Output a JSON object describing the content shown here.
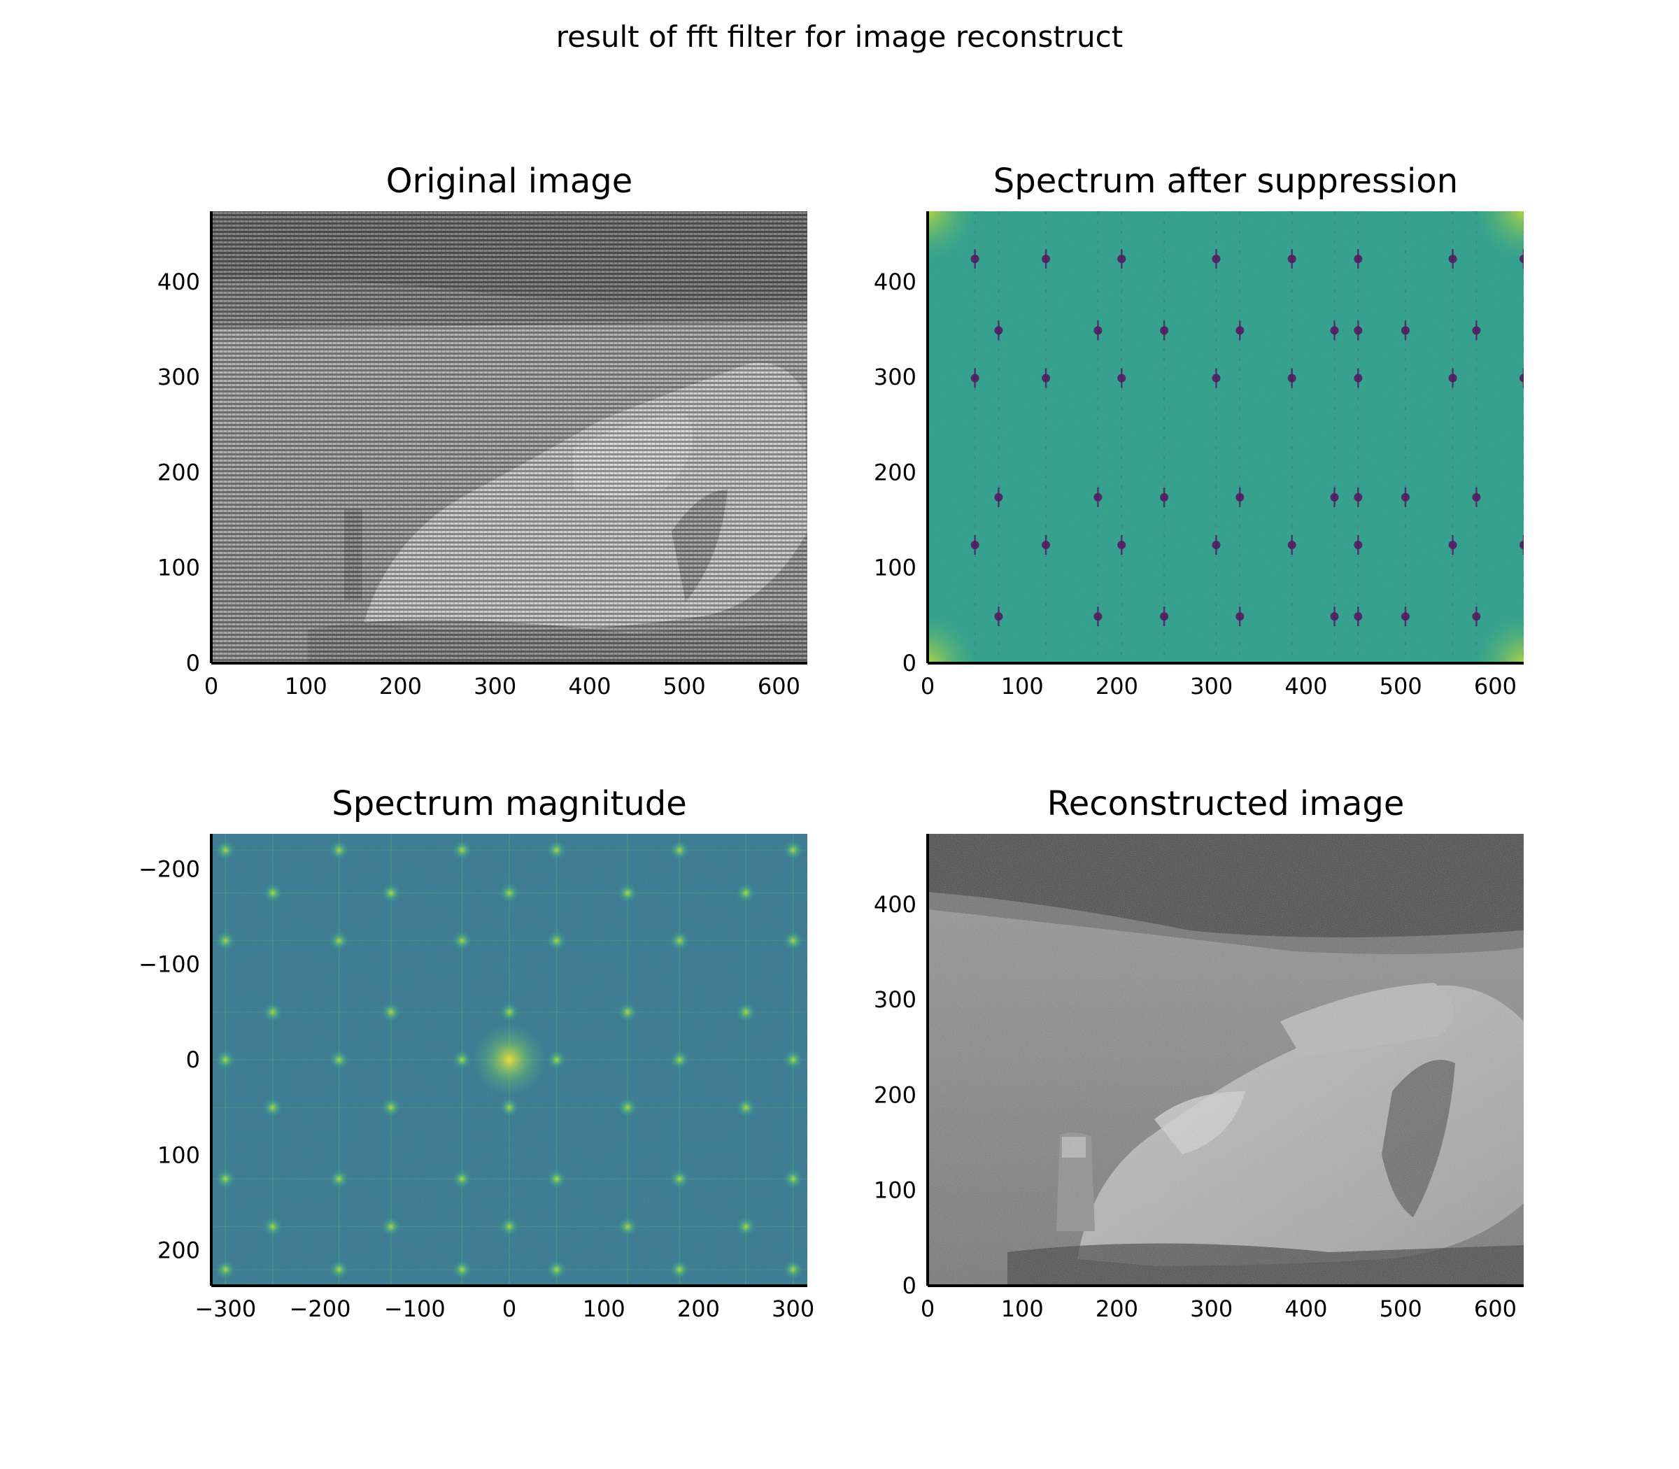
{
  "figure": {
    "title": "result of fft filter for image reconstruct"
  },
  "colors": {
    "axis": "#000000",
    "gray_dark": "#2f2f2f",
    "gray_light": "#d6d6d6",
    "viridis_low": "#440154",
    "viridis_mid": "#21918c",
    "viridis_teal": "#1f9e89",
    "viridis_high": "#fde725",
    "spectrum_blue": "#2a6f8e"
  },
  "chart_data": [
    {
      "id": "original",
      "type": "heatmap",
      "colormap": "gray",
      "content": "noisy grayscale photo (moon landing scene with boulder and astronaut)",
      "title": "Original image",
      "xlabel": "",
      "ylabel": "",
      "xlim": [
        0,
        630
      ],
      "ylim": [
        474,
        0
      ],
      "xticks": [
        0,
        100,
        200,
        300,
        400,
        500,
        600
      ],
      "yticks": [
        0,
        100,
        200,
        300,
        400
      ],
      "xtick_labels": [
        "0",
        "100",
        "200",
        "300",
        "400",
        "500",
        "600"
      ],
      "ytick_labels": [
        "0",
        "100",
        "200",
        "300",
        "400"
      ],
      "grid": false
    },
    {
      "id": "suppressed",
      "type": "heatmap",
      "colormap": "viridis",
      "content": "log spectrum after suppressing periodic peaks (dark notches on teal field)",
      "title": "Spectrum after suppression",
      "xlabel": "",
      "ylabel": "",
      "xlim": [
        0,
        630
      ],
      "ylim": [
        474,
        0
      ],
      "xticks": [
        0,
        100,
        200,
        300,
        400,
        500,
        600
      ],
      "yticks": [
        0,
        100,
        200,
        300,
        400
      ],
      "xtick_labels": [
        "0",
        "100",
        "200",
        "300",
        "400",
        "500",
        "600"
      ],
      "ytick_labels": [
        "0",
        "100",
        "200",
        "300",
        "400"
      ],
      "grid": false
    },
    {
      "id": "magnitude",
      "type": "heatmap",
      "colormap": "viridis",
      "content": "centered log spectrum magnitude with bright periodic peaks",
      "title": "Spectrum magnitude",
      "xlabel": "",
      "ylabel": "",
      "xlim": [
        -315,
        315
      ],
      "ylim": [
        -237,
        237
      ],
      "xticks": [
        -300,
        -200,
        -100,
        0,
        100,
        200,
        300
      ],
      "yticks": [
        200,
        100,
        0,
        -100,
        -200
      ],
      "xtick_labels": [
        "−300",
        "−200",
        "−100",
        "0",
        "100",
        "200",
        "300"
      ],
      "ytick_labels": [
        "200",
        "100",
        "0",
        "−100",
        "−200"
      ],
      "grid": false
    },
    {
      "id": "reconstructed",
      "type": "heatmap",
      "colormap": "gray",
      "content": "reconstructed grayscale photo (moon landing scene with boulder and astronaut)",
      "title": "Reconstructed image",
      "xlabel": "",
      "ylabel": "",
      "xlim": [
        0,
        630
      ],
      "ylim": [
        474,
        0
      ],
      "xticks": [
        0,
        100,
        200,
        300,
        400,
        500,
        600
      ],
      "yticks": [
        0,
        100,
        200,
        300,
        400
      ],
      "xtick_labels": [
        "0",
        "100",
        "200",
        "300",
        "400",
        "500",
        "600"
      ],
      "ytick_labels": [
        "0",
        "100",
        "200",
        "300",
        "400"
      ],
      "grid": false
    }
  ]
}
